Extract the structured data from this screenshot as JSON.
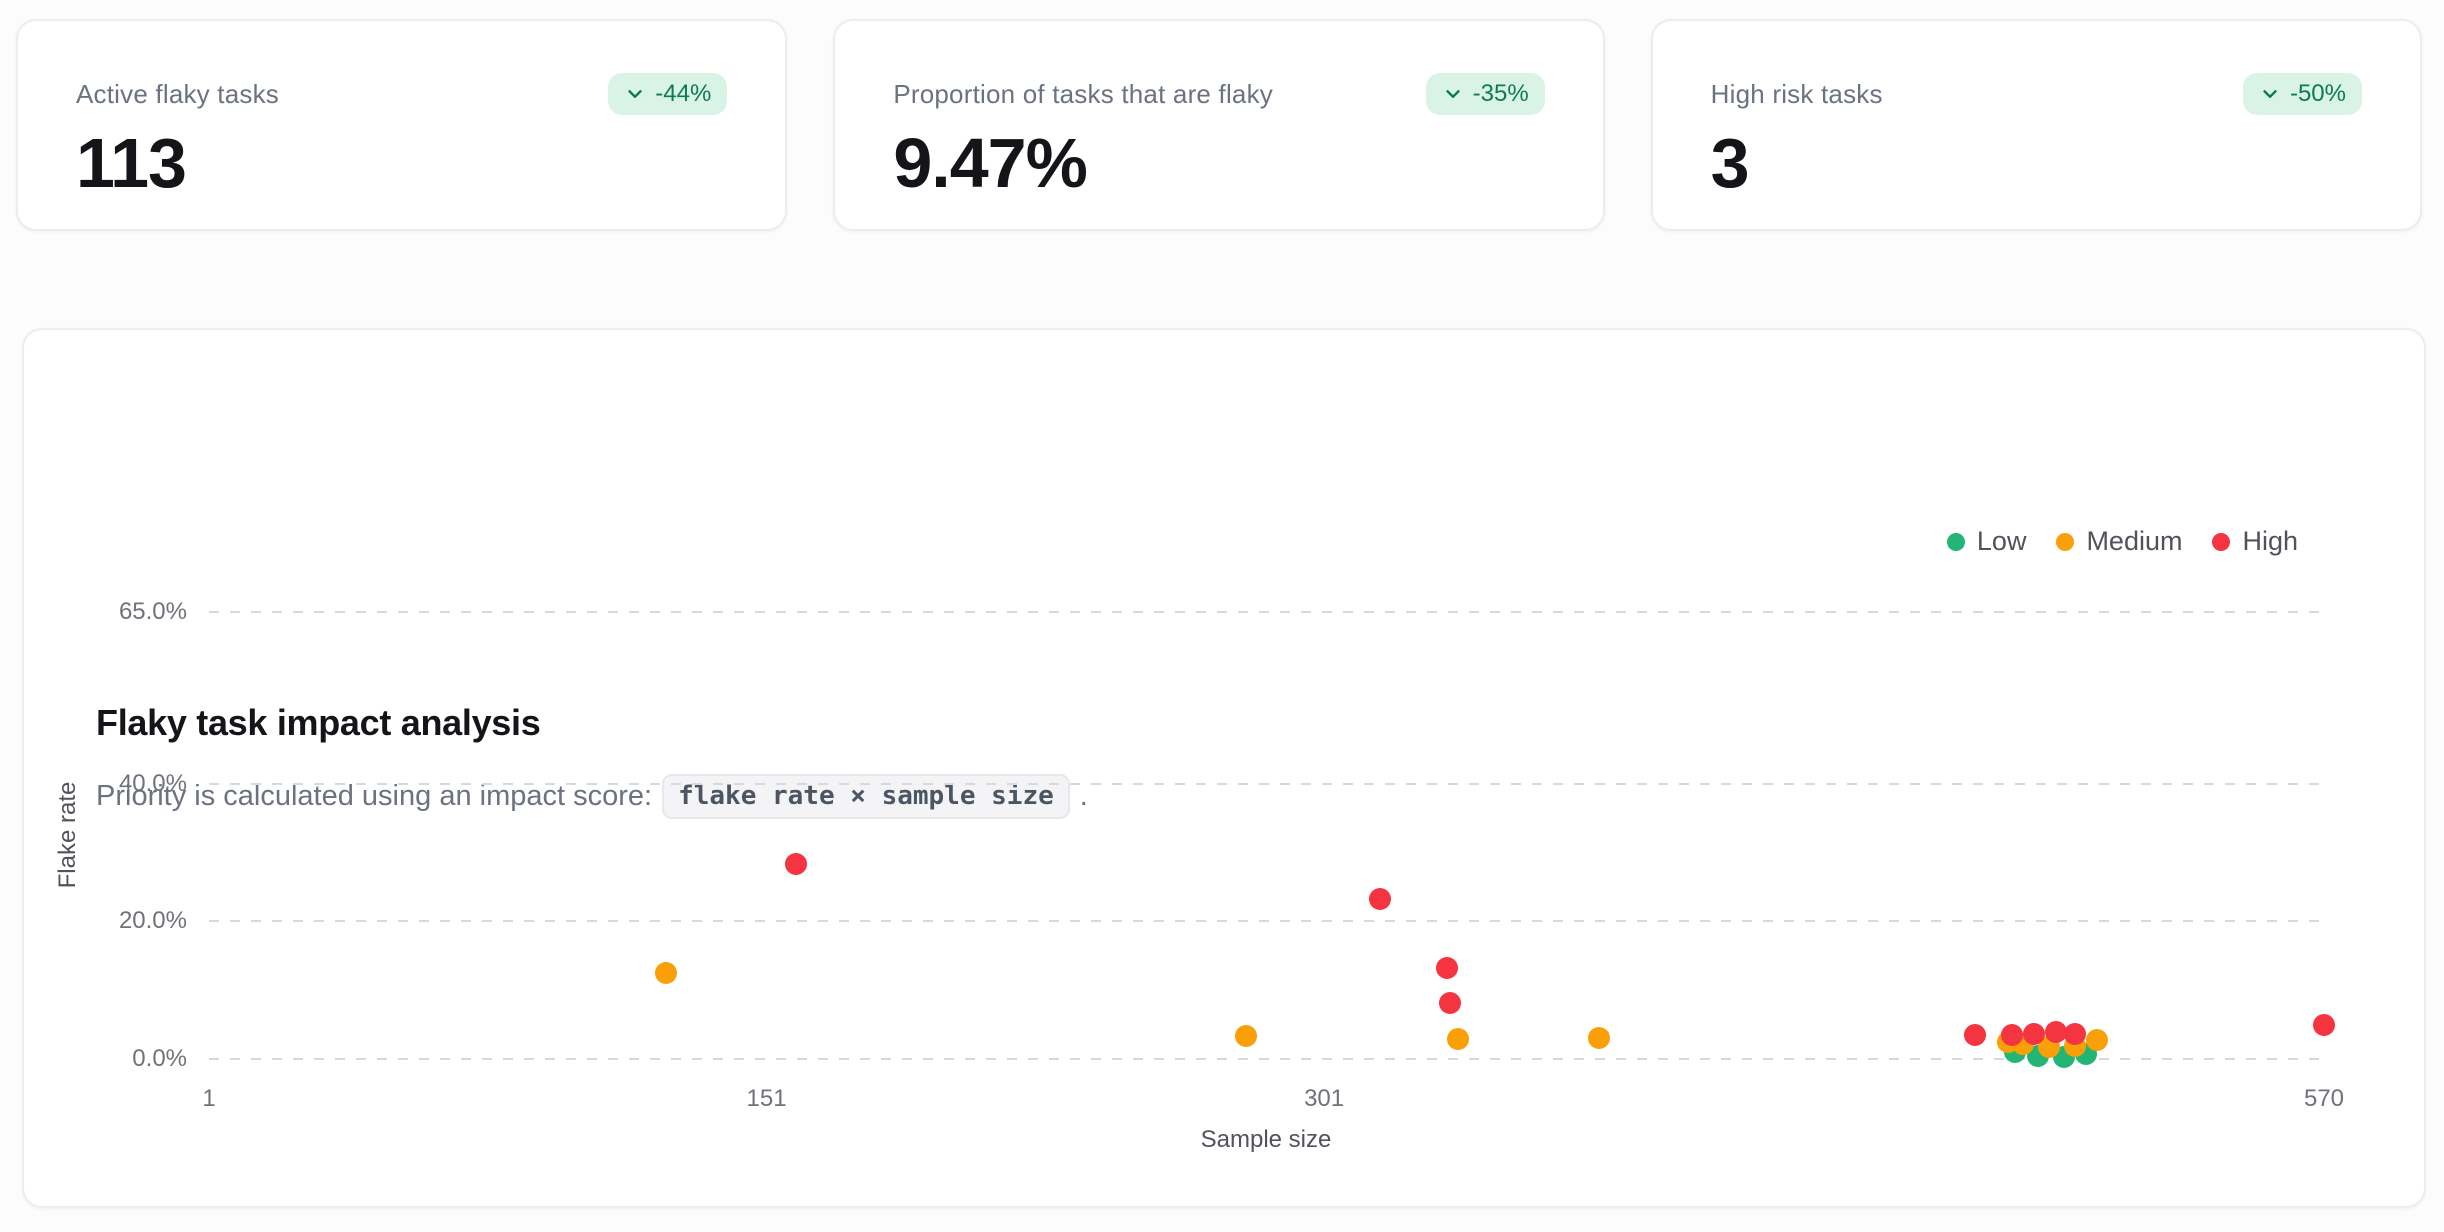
{
  "stats": [
    {
      "label": "Active flaky tasks",
      "value": "113",
      "delta": "-44%",
      "delta_icon": "chevron-down-icon"
    },
    {
      "label": "Proportion of tasks that are flaky",
      "value": "9.47%",
      "delta": "-35%",
      "delta_icon": "chevron-down-icon"
    },
    {
      "label": "High risk tasks",
      "value": "3",
      "delta": "-50%",
      "delta_icon": "chevron-down-icon"
    }
  ],
  "chart": {
    "title": "Flaky task impact analysis",
    "subtitle_prefix": "Priority is calculated using an impact score:",
    "formula": "flake rate × sample size",
    "subtitle_suffix": "."
  },
  "colors": {
    "badge_bg": "#d9f4e6",
    "badge_text": "#0c7a52",
    "low": "#22b573",
    "medium": "#f9a008",
    "high": "#f43440",
    "grid": "#d8d8df"
  },
  "chart_data": {
    "type": "scatter",
    "title": "Flaky task impact analysis",
    "xlabel": "Sample size",
    "ylabel": "Flake rate",
    "xlim": [
      1,
      570
    ],
    "ylim": [
      0,
      65
    ],
    "y_unit": "%",
    "grid": "horizontal-dashed",
    "legend_position": "top-right",
    "point_radius_px": 11,
    "x_ticks": [
      {
        "v": 1,
        "label": "1"
      },
      {
        "v": 151,
        "label": "151"
      },
      {
        "v": 301,
        "label": "301"
      },
      {
        "v": 570,
        "label": "570"
      }
    ],
    "y_ticks": [
      {
        "v": 0,
        "label": "0.0%"
      },
      {
        "v": 20,
        "label": "20.0%"
      },
      {
        "v": 40,
        "label": "40.0%"
      },
      {
        "v": 65,
        "label": "65.0%"
      }
    ],
    "series": [
      {
        "name": "Low",
        "color": "#22b573",
        "points": [
          [
            487,
            1.0
          ],
          [
            493,
            0.4
          ],
          [
            500,
            0.3
          ],
          [
            506,
            0.7
          ]
        ]
      },
      {
        "name": "Medium",
        "color": "#f9a008",
        "points": [
          [
            124,
            12.5
          ],
          [
            280,
            3.3
          ],
          [
            337,
            2.9
          ],
          [
            375,
            3.0
          ],
          [
            485,
            2.4
          ],
          [
            489,
            2.2
          ],
          [
            496,
            1.7
          ],
          [
            503,
            1.9
          ],
          [
            509,
            2.7
          ]
        ]
      },
      {
        "name": "High",
        "color": "#f43440",
        "points": [
          [
            159,
            28.3
          ],
          [
            316,
            23.2
          ],
          [
            334,
            13.2
          ],
          [
            335,
            8.2
          ],
          [
            476,
            3.5
          ],
          [
            486,
            3.5
          ],
          [
            492,
            3.7
          ],
          [
            498,
            3.9
          ],
          [
            503,
            3.6
          ],
          [
            570,
            5.0
          ]
        ]
      }
    ]
  }
}
